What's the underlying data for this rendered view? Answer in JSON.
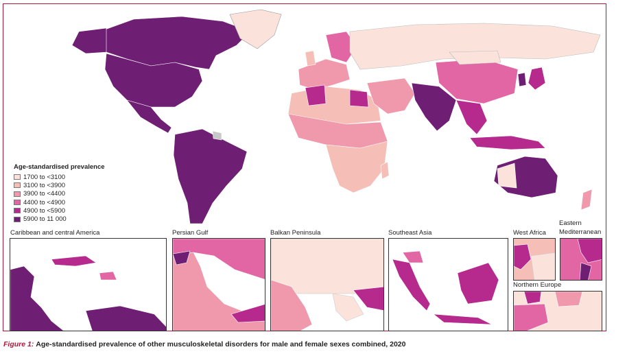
{
  "legend": {
    "title": "Age-standardised prevalence",
    "items": [
      {
        "label": "1700 to <3100",
        "color": "#fbe3dc"
      },
      {
        "label": "3100 to <3900",
        "color": "#f5bfb8"
      },
      {
        "label": "3900 to <4400",
        "color": "#f098ac"
      },
      {
        "label": "4400 to <4900",
        "color": "#e366a4"
      },
      {
        "label": "4900 to <5900",
        "color": "#b52a8c"
      },
      {
        "label": "5900 to 11 000",
        "color": "#6f1f73"
      }
    ]
  },
  "insets": {
    "caribbean": "Caribbean and central America",
    "persian_gulf": "Persian Gulf",
    "balkan": "Balkan Peninsula",
    "southeast_asia": "Southeast Asia",
    "west_africa": "West Africa",
    "eastern_med": "Eastern Mediterranean",
    "northern_europe": "Northern Europe"
  },
  "caption": {
    "figure_label": "Figure 1:",
    "text": "Age-standardised prevalence of other musculoskeletal disorders for male and female sexes combined, 2020"
  },
  "colors": {
    "frame": "#b0163a",
    "no_data": "#c8c8c8"
  }
}
